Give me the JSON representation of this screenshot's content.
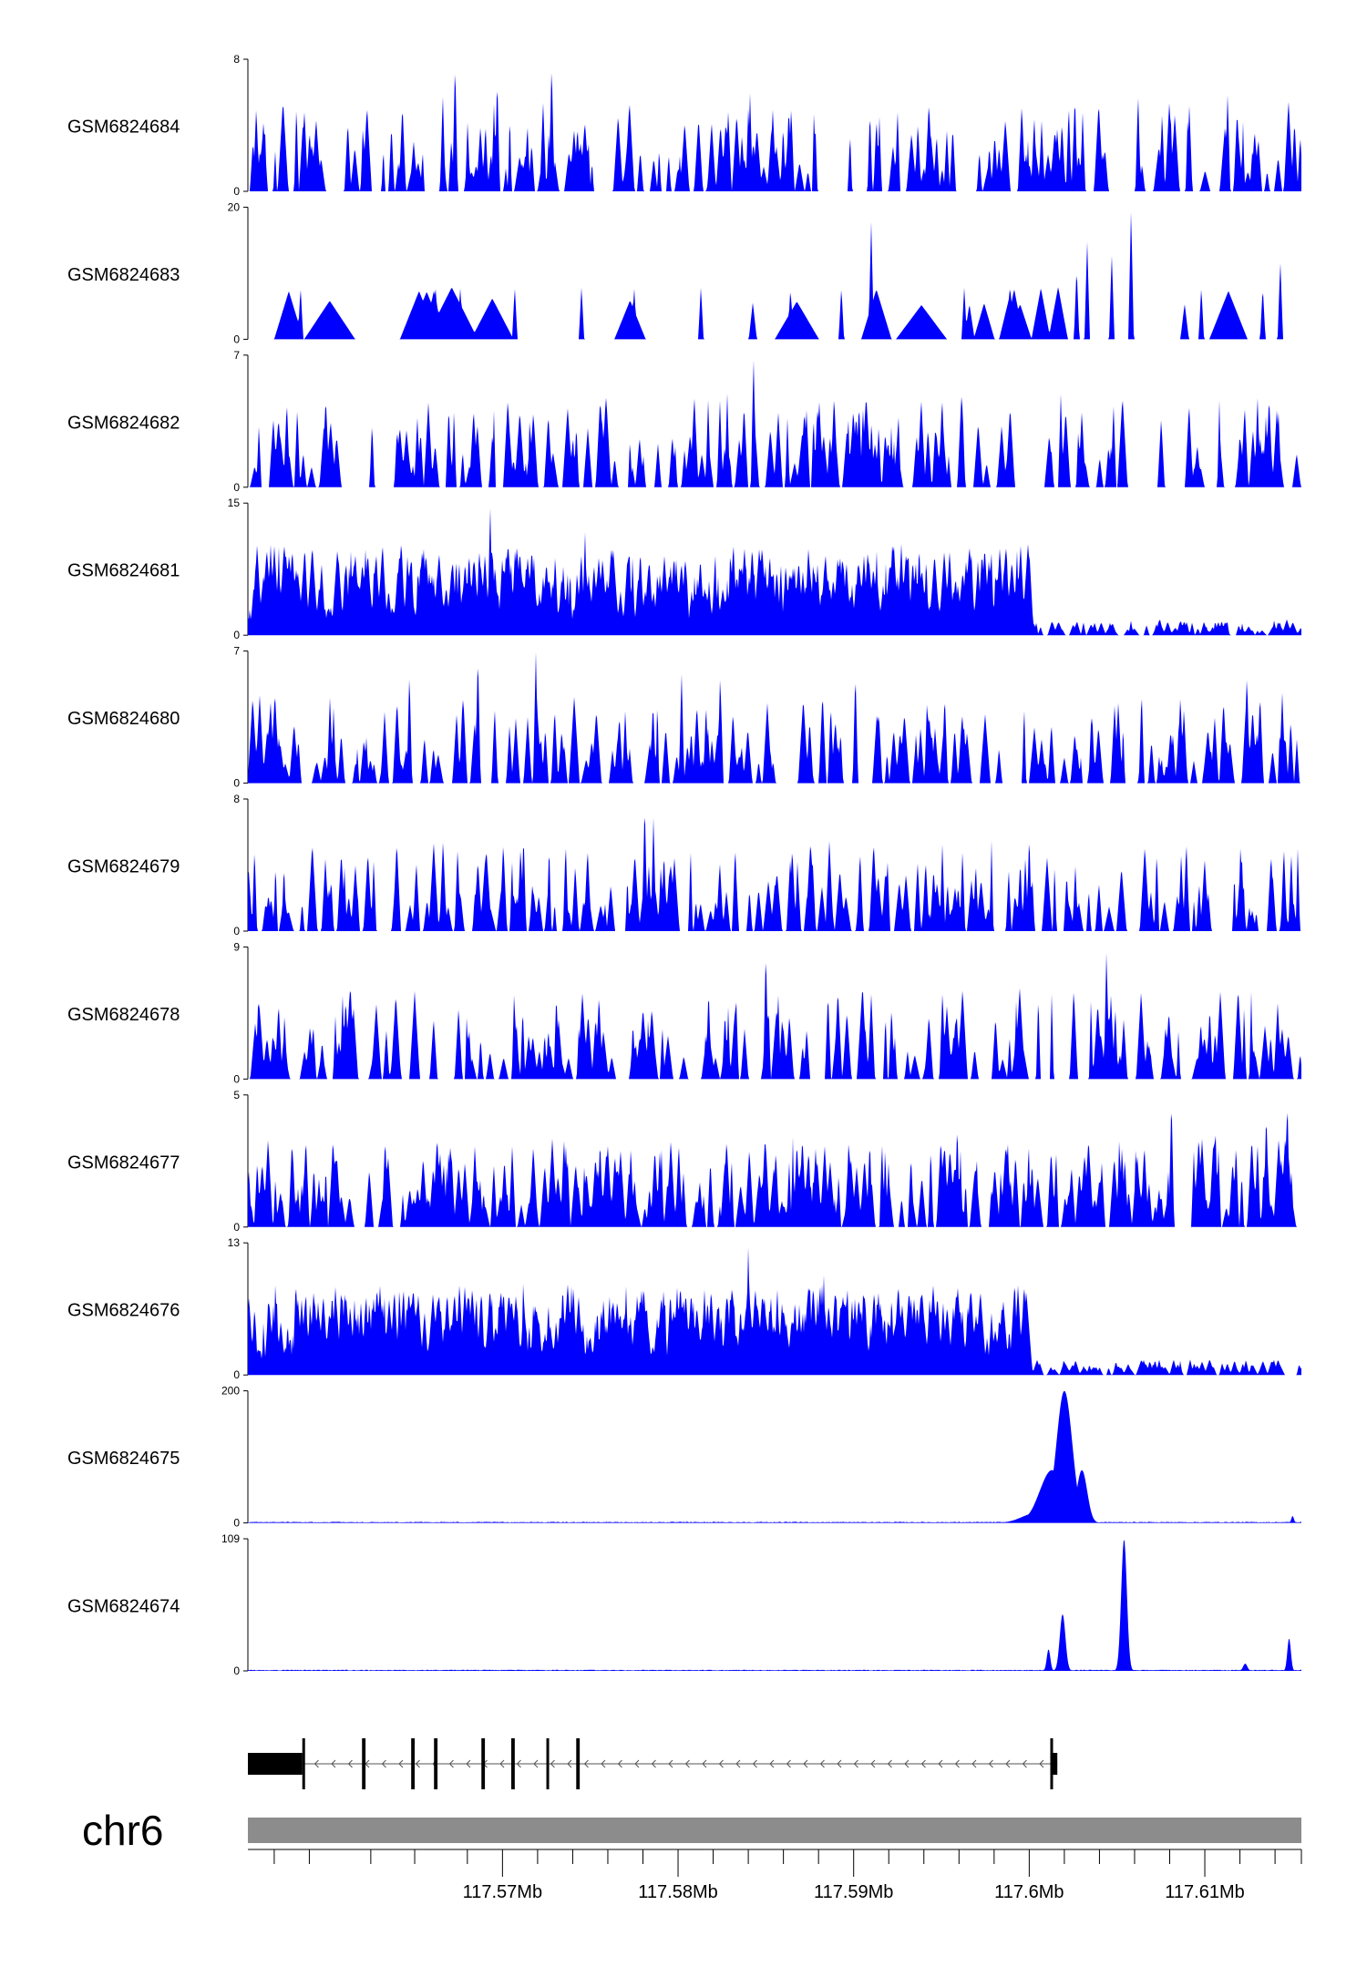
{
  "chart_data": {
    "type": "area",
    "title": "",
    "chromosome": "chr6",
    "xlabel": "",
    "xlim": [
      117.5555,
      117.6155
    ],
    "x_axis_unit": "Mb",
    "x_ticks": [
      {
        "label": "117.57Mb",
        "value": 117.57
      },
      {
        "label": "117.58Mb",
        "value": 117.58
      },
      {
        "label": "117.59Mb",
        "value": 117.59
      },
      {
        "label": "117.6Mb",
        "value": 117.6
      },
      {
        "label": "117.61Mb",
        "value": 117.61
      }
    ],
    "minor_ticks": [
      117.557,
      117.559,
      117.5625,
      117.565,
      117.568,
      117.572,
      117.574,
      117.576,
      117.578,
      117.582,
      117.584,
      117.586,
      117.588,
      117.592,
      117.594,
      117.596,
      117.598,
      117.602,
      117.604,
      117.606,
      117.608,
      117.612,
      117.614,
      117.6155
    ],
    "colors": {
      "signal": "#0000ff",
      "axis": "#000000",
      "ideogram": "#8c8c8c",
      "gene": "#000000"
    },
    "tracks": [
      {
        "name": "GSM6824684",
        "ymin": 0,
        "ymax": 8,
        "y_min_label": "0",
        "y_max_label": "8",
        "profile": "sparse",
        "peaks": [
          [
            117.5666,
            6
          ],
          [
            117.5673,
            8
          ],
          [
            117.5697,
            7
          ],
          [
            117.5728,
            8
          ],
          [
            117.5841,
            6
          ],
          [
            117.5925,
            5
          ],
          [
            117.6026,
            6
          ],
          [
            117.6062,
            6
          ],
          [
            117.6113,
            6
          ]
        ]
      },
      {
        "name": "GSM6824683",
        "ymin": 0,
        "ymax": 20,
        "y_min_label": "0",
        "y_max_label": "20",
        "profile": "very_sparse",
        "peaks": [
          [
            117.5585,
            8
          ],
          [
            117.5662,
            8
          ],
          [
            117.5676,
            8
          ],
          [
            117.5707,
            8
          ],
          [
            117.5745,
            8
          ],
          [
            117.5775,
            8
          ],
          [
            117.5813,
            8
          ],
          [
            117.5864,
            8
          ],
          [
            117.5893,
            8
          ],
          [
            117.591,
            18
          ],
          [
            117.5963,
            8
          ],
          [
            117.6027,
            11
          ],
          [
            117.6033,
            15
          ],
          [
            117.6047,
            13
          ],
          [
            117.6058,
            20
          ],
          [
            117.6098,
            8
          ],
          [
            117.6133,
            8
          ],
          [
            117.6143,
            12
          ]
        ]
      },
      {
        "name": "GSM6824682",
        "ymin": 0,
        "ymax": 7,
        "y_min_label": "0",
        "y_max_label": "7",
        "profile": "sparse",
        "peaks": [
          [
            117.5828,
            5
          ],
          [
            117.5843,
            7
          ],
          [
            117.5962,
            4.5
          ],
          [
            117.6018,
            5
          ],
          [
            117.6048,
            4.5
          ],
          [
            117.613,
            5
          ],
          [
            117.6142,
            4
          ]
        ]
      },
      {
        "name": "GSM6824681",
        "ymin": 0,
        "ymax": 15,
        "y_min_label": "0",
        "y_max_label": "15",
        "profile": "dense",
        "dense_until": 117.6,
        "peaks": [
          [
            117.5622,
            10
          ],
          [
            117.5655,
            11
          ],
          [
            117.5693,
            15
          ],
          [
            117.5705,
            8
          ],
          [
            117.5747,
            12
          ],
          [
            117.5798,
            9
          ],
          [
            117.5835,
            9
          ],
          [
            117.5877,
            9
          ],
          [
            117.5925,
            7
          ],
          [
            117.5987,
            11
          ],
          [
            117.5993,
            10
          ]
        ]
      },
      {
        "name": "GSM6824680",
        "ymin": 0,
        "ymax": 7,
        "y_min_label": "0",
        "y_max_label": "7",
        "profile": "sparse",
        "peaks": [
          [
            117.5647,
            6
          ],
          [
            117.5686,
            7
          ],
          [
            117.5719,
            7
          ],
          [
            117.5802,
            6
          ],
          [
            117.5824,
            6
          ],
          [
            117.5901,
            6
          ],
          [
            117.6064,
            5
          ],
          [
            117.6124,
            6
          ]
        ]
      },
      {
        "name": "GSM6824679",
        "ymin": 0,
        "ymax": 8,
        "y_min_label": "0",
        "y_max_label": "8",
        "profile": "sparse",
        "peaks": [
          [
            117.5712,
            6
          ],
          [
            117.5736,
            5.5
          ],
          [
            117.5781,
            8
          ],
          [
            117.5786,
            7
          ],
          [
            117.5962,
            5
          ],
          [
            117.6,
            6
          ],
          [
            117.6121,
            5
          ]
        ]
      },
      {
        "name": "GSM6824678",
        "ymin": 0,
        "ymax": 9,
        "y_min_label": "0",
        "y_max_label": "9",
        "profile": "sparse",
        "peaks": [
          [
            117.5561,
            6
          ],
          [
            117.5833,
            6
          ],
          [
            117.585,
            9
          ],
          [
            117.5857,
            6
          ],
          [
            117.6044,
            9
          ],
          [
            117.6049,
            5
          ]
        ]
      },
      {
        "name": "GSM6824677",
        "ymin": 0,
        "ymax": 5,
        "y_min_label": "0",
        "y_max_label": "5",
        "profile": "medium",
        "peaks": [
          [
            117.5959,
            4
          ],
          [
            117.6081,
            5
          ],
          [
            117.6106,
            4
          ],
          [
            117.6135,
            4.5
          ],
          [
            117.6147,
            5
          ]
        ]
      },
      {
        "name": "GSM6824676",
        "ymin": 0,
        "ymax": 13,
        "y_min_label": "0",
        "y_max_label": "13",
        "profile": "dense",
        "dense_until": 117.6,
        "peaks": [
          [
            117.5588,
            9
          ],
          [
            117.5698,
            8
          ],
          [
            117.584,
            13
          ],
          [
            117.5853,
            8
          ],
          [
            117.5875,
            10
          ],
          [
            117.5883,
            10
          ],
          [
            117.589,
            9
          ],
          [
            117.596,
            8
          ],
          [
            117.5985,
            6
          ]
        ]
      },
      {
        "name": "GSM6824675",
        "ymin": 0,
        "ymax": 200,
        "y_min_label": "0",
        "y_max_label": "200",
        "profile": "flat",
        "broad_peaks": [
          [
            117.602,
            200,
            0.00045
          ],
          [
            117.6013,
            80,
            0.0007
          ],
          [
            117.603,
            80,
            0.0003
          ],
          [
            117.6004,
            15,
            0.0008
          ]
        ],
        "peaks": [
          [
            117.615,
            12
          ]
        ]
      },
      {
        "name": "GSM6824674",
        "ymin": 0,
        "ymax": 109,
        "y_min_label": "0",
        "y_max_label": "109",
        "profile": "flat",
        "broad_peaks": [
          [
            117.6054,
            109,
            0.00016
          ],
          [
            117.6019,
            47,
            0.00016
          ],
          [
            117.6011,
            18,
            0.0001
          ],
          [
            117.6148,
            27,
            0.0001
          ],
          [
            117.6123,
            6,
            0.00012
          ]
        ],
        "peaks": []
      }
    ],
    "gene_model": {
      "strand": "-",
      "start": 117.5555,
      "end": 117.6016,
      "exons": [
        [
          117.5555,
          117.5586
        ],
        [
          117.562,
          117.5622
        ],
        [
          117.5648,
          117.565
        ],
        [
          117.5661,
          117.5663
        ],
        [
          117.5688,
          117.569
        ],
        [
          117.5705,
          117.5707
        ],
        [
          117.5725,
          117.5726
        ],
        [
          117.5742,
          117.5744
        ],
        [
          117.6012,
          117.6016
        ]
      ],
      "cds_exons": [
        [
          117.5555,
          117.5586
        ],
        [
          117.6012,
          117.6016
        ]
      ]
    }
  }
}
